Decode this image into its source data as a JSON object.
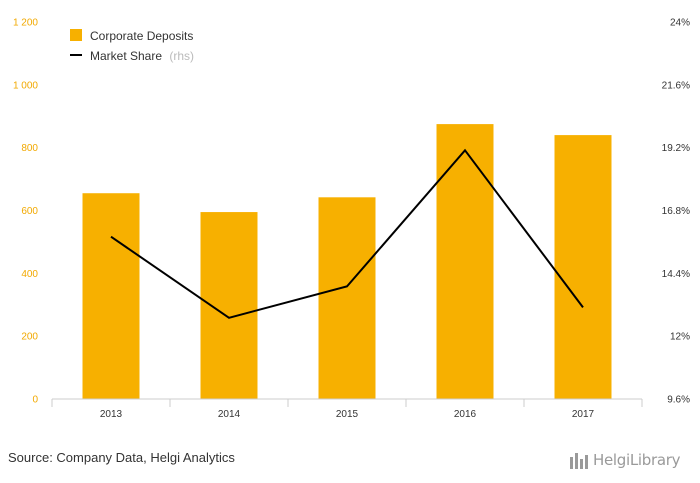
{
  "chart_data": {
    "type": "bar",
    "categories": [
      "2013",
      "2014",
      "2015",
      "2016",
      "2017"
    ],
    "series": [
      {
        "name": "Corporate Deposits",
        "type": "bar",
        "axis": "left",
        "color": "#f7b000",
        "values": [
          655,
          595,
          642,
          875,
          840
        ]
      },
      {
        "name": "Market Share",
        "type": "line",
        "axis": "right",
        "color": "#000000",
        "values": [
          15.8,
          12.7,
          13.9,
          19.1,
          13.1
        ]
      }
    ],
    "y_left": {
      "ylim": [
        0,
        1200
      ],
      "ticks": [
        "0",
        "200",
        "400",
        "600",
        "800",
        "1 000",
        "1 200"
      ]
    },
    "y_right": {
      "ylim": [
        9.6,
        24
      ],
      "ticks": [
        "9.6%",
        "12%",
        "14.4%",
        "16.8%",
        "19.2%",
        "21.6%",
        "24%"
      ]
    },
    "legend": {
      "placement": "top-left",
      "items": [
        {
          "label": "Corporate Deposits",
          "suffix": "",
          "marker": "square"
        },
        {
          "label": "Market Share",
          "suffix": "(rhs)",
          "marker": "line"
        }
      ]
    },
    "grid": false
  },
  "footer": {
    "source": "Source: Company Data, Helgi Analytics",
    "logo_text": "HelgiLibrary"
  }
}
